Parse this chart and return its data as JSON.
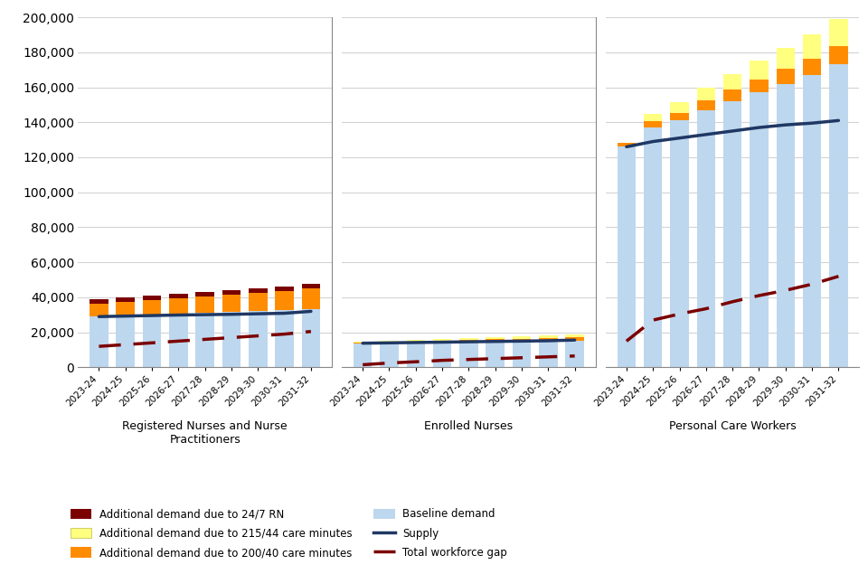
{
  "years": [
    "2023-24",
    "2024-25",
    "2025-26",
    "2026-27",
    "2027-28",
    "2028-29",
    "2029-30",
    "2030-31",
    "2031-32"
  ],
  "rn": {
    "baseline_demand": [
      29000,
      29500,
      30000,
      30500,
      31000,
      31500,
      32000,
      32500,
      33000
    ],
    "add_200_40": [
      7500,
      8000,
      8500,
      9000,
      9500,
      10000,
      10500,
      11000,
      12000
    ],
    "add_24_7": [
      2500,
      2500,
      2500,
      2500,
      2500,
      2500,
      2500,
      2500,
      2500
    ],
    "add_215_44": [
      0,
      0,
      0,
      0,
      0,
      0,
      0,
      0,
      0
    ],
    "supply": [
      29000,
      29300,
      29600,
      29900,
      30100,
      30300,
      30600,
      30900,
      32000
    ],
    "gap": [
      12000,
      13000,
      14000,
      15000,
      16000,
      17000,
      18000,
      19000,
      20500
    ]
  },
  "en": {
    "baseline_demand": [
      13500,
      13700,
      13900,
      14100,
      14300,
      14500,
      14700,
      14900,
      15100
    ],
    "add_200_40": [
      500,
      700,
      900,
      1100,
      1300,
      1500,
      1600,
      1700,
      1900
    ],
    "add_24_7": [
      0,
      0,
      0,
      0,
      0,
      0,
      0,
      0,
      0
    ],
    "add_215_44": [
      500,
      700,
      900,
      1100,
      1300,
      1500,
      1600,
      1700,
      1900
    ],
    "supply": [
      13800,
      14000,
      14200,
      14400,
      14600,
      14800,
      15000,
      15200,
      15600
    ],
    "gap": [
      1500,
      2500,
      3200,
      4000,
      4500,
      5000,
      5500,
      6000,
      6500
    ]
  },
  "pcw": {
    "baseline_demand": [
      126000,
      137000,
      141000,
      147000,
      152000,
      157000,
      162000,
      167000,
      173000
    ],
    "add_200_40": [
      2000,
      3500,
      4500,
      5500,
      6500,
      7500,
      8500,
      9500,
      10500
    ],
    "add_24_7": [
      0,
      0,
      0,
      0,
      0,
      0,
      0,
      0,
      0
    ],
    "add_215_44": [
      0,
      4500,
      6000,
      7500,
      9000,
      10500,
      12000,
      13500,
      15500
    ],
    "supply": [
      126000,
      129000,
      131000,
      133000,
      135000,
      137000,
      138500,
      139500,
      141000
    ],
    "gap": [
      15000,
      27000,
      30500,
      33500,
      37500,
      41000,
      44000,
      47500,
      52000
    ]
  },
  "colors": {
    "baseline_demand": "#BDD7EE",
    "add_200_40": "#FF8C00",
    "add_24_7": "#7B0000",
    "add_215_44": "#FFFF80",
    "supply": "#1F3864",
    "gap": "#7B0000"
  },
  "ylim": [
    0,
    200000
  ],
  "yticks": [
    0,
    20000,
    40000,
    60000,
    80000,
    100000,
    120000,
    140000,
    160000,
    180000,
    200000
  ],
  "group_labels": [
    "Registered Nurses and Nurse\nPractitioners",
    "Enrolled Nurses",
    "Personal Care Workers"
  ],
  "legend_labels": {
    "add_24_7": "Additional demand due to 24/7 RN",
    "add_215_44": "Additional demand due to 215/44 care minutes",
    "add_200_40": "Additional demand due to 200/40 care minutes",
    "baseline": "Baseline demand",
    "supply": "Supply",
    "gap": "Total workforce gap"
  }
}
